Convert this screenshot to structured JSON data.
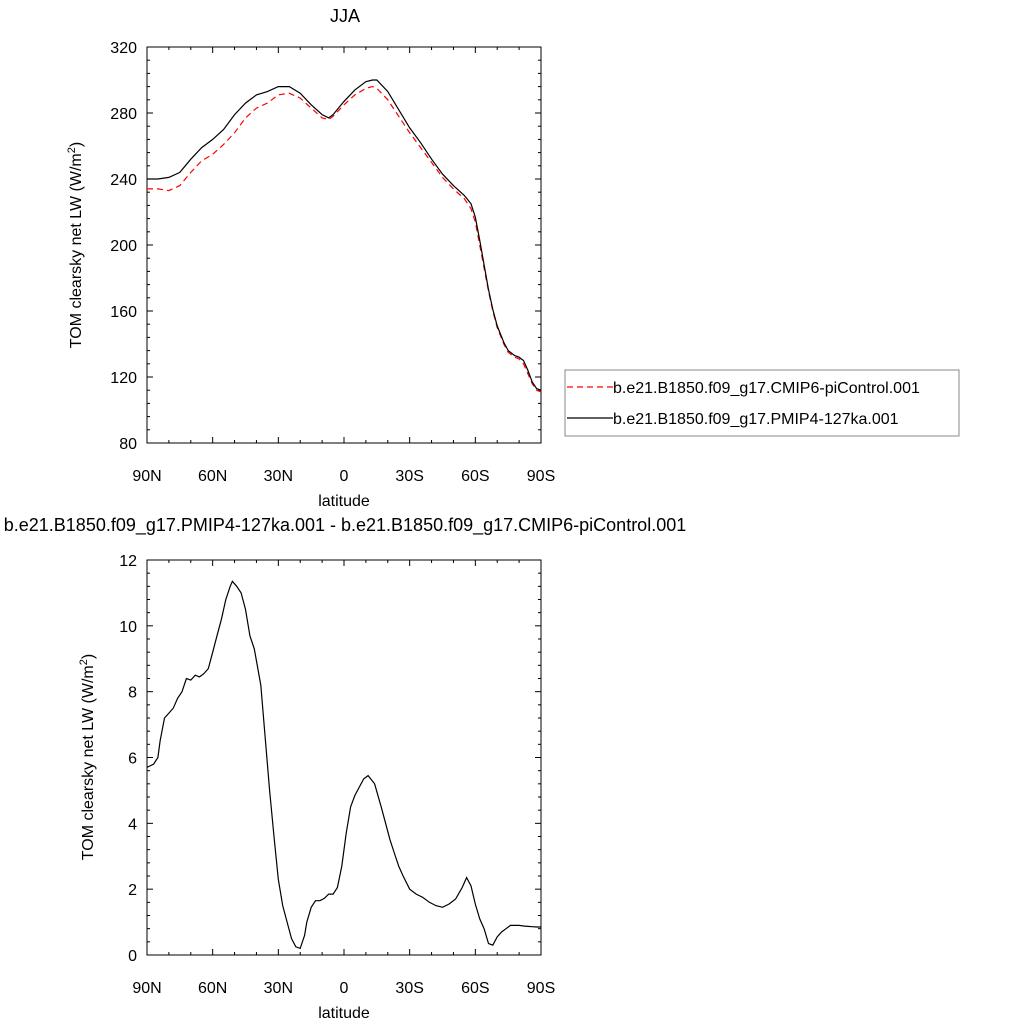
{
  "chart_data": [
    {
      "type": "line",
      "title": "JJA",
      "xlabel": "latitude",
      "ylabel_main": "TOM clearsky net LW (W/m",
      "ylabel_sup": "2",
      "ylabel_tail": ")",
      "xlim": [
        90,
        -90
      ],
      "ylim": [
        80,
        320
      ],
      "xticks": [
        {
          "value": 90,
          "label": "90N"
        },
        {
          "value": 60,
          "label": "60N"
        },
        {
          "value": 30,
          "label": "30N"
        },
        {
          "value": 0,
          "label": "0"
        },
        {
          "value": -30,
          "label": "30S"
        },
        {
          "value": -60,
          "label": "60S"
        },
        {
          "value": -90,
          "label": "90S"
        }
      ],
      "yticks": [
        80,
        120,
        160,
        200,
        240,
        280,
        320
      ],
      "legend": "right",
      "series": [
        {
          "name": "b.e21.B1850.f09_g17.CMIP6-piControl.001",
          "color": "#ff0000",
          "dash": "dashed",
          "x": [
            90,
            85,
            80,
            75,
            70,
            65,
            60,
            55,
            50,
            45,
            40,
            35,
            30,
            25,
            20,
            15,
            10,
            7,
            5,
            0,
            -5,
            -10,
            -13,
            -15,
            -20,
            -25,
            -30,
            -35,
            -40,
            -45,
            -50,
            -55,
            -58,
            -60,
            -62,
            -64,
            -66,
            -68,
            -70,
            -73,
            -75,
            -78,
            -80,
            -82,
            -84,
            -86,
            -88,
            -90
          ],
          "y": [
            234,
            234,
            233,
            236,
            244,
            251,
            255,
            261,
            268,
            277,
            283,
            286,
            291,
            292,
            289,
            283,
            277,
            276,
            278,
            285,
            291,
            295,
            296,
            295,
            288,
            278,
            268,
            259,
            250,
            241,
            234,
            228,
            222,
            214,
            200,
            186,
            172,
            160,
            150,
            140,
            135,
            132,
            131,
            128,
            122,
            116,
            112,
            111
          ]
        },
        {
          "name": "b.e21.B1850.f09_g17.PMIP4-127ka.001",
          "color": "#000000",
          "dash": "solid",
          "x": [
            90,
            85,
            80,
            75,
            70,
            65,
            60,
            55,
            50,
            45,
            40,
            35,
            30,
            25,
            20,
            15,
            10,
            7,
            5,
            0,
            -5,
            -10,
            -13,
            -15,
            -20,
            -25,
            -30,
            -35,
            -40,
            -45,
            -50,
            -55,
            -58,
            -60,
            -62,
            -64,
            -66,
            -68,
            -70,
            -73,
            -75,
            -78,
            -80,
            -82,
            -84,
            -86,
            -88,
            -90
          ],
          "y": [
            240,
            240,
            241,
            244,
            252,
            259,
            264,
            270,
            279,
            286,
            291,
            293,
            296,
            296,
            292,
            285,
            279,
            277,
            279,
            287,
            294,
            299,
            300,
            300,
            293,
            282,
            271,
            262,
            252,
            243,
            236,
            230,
            225,
            217,
            203,
            188,
            173,
            161,
            151,
            141,
            136,
            133,
            132,
            130,
            124,
            117,
            113,
            112
          ]
        }
      ]
    },
    {
      "type": "line",
      "title": "b.e21.B1850.f09_g17.PMIP4-127ka.001 - b.e21.B1850.f09_g17.CMIP6-piControl.001",
      "xlabel": "latitude",
      "ylabel_main": "TOM clearsky net LW (W/m",
      "ylabel_sup": "2",
      "ylabel_tail": ")",
      "xlim": [
        90,
        -90
      ],
      "ylim": [
        0,
        12
      ],
      "xticks": [
        {
          "value": 90,
          "label": "90N"
        },
        {
          "value": 60,
          "label": "60N"
        },
        {
          "value": 30,
          "label": "30N"
        },
        {
          "value": 0,
          "label": "0"
        },
        {
          "value": -30,
          "label": "30S"
        },
        {
          "value": -60,
          "label": "60S"
        },
        {
          "value": -90,
          "label": "90S"
        }
      ],
      "yticks": [
        0,
        2,
        4,
        6,
        8,
        10,
        12
      ],
      "series": [
        {
          "color": "#000000",
          "dash": "solid",
          "x": [
            90,
            87,
            85,
            84,
            82,
            80,
            78,
            76,
            74,
            72,
            70,
            68,
            66,
            64,
            62,
            60,
            58,
            56,
            54,
            52,
            51,
            49,
            47,
            45,
            43,
            41,
            38,
            36,
            34,
            32,
            30,
            28,
            26,
            24,
            22,
            20,
            18,
            17,
            15,
            13,
            11,
            9,
            7,
            5,
            3,
            1,
            -1,
            -3,
            -5,
            -7,
            -9,
            -11,
            -14,
            -17,
            -19,
            -21,
            -23,
            -25,
            -27,
            -30,
            -33,
            -36,
            -39,
            -42,
            -45,
            -48,
            -51,
            -54,
            -56,
            -58,
            -60,
            -62,
            -64,
            -66,
            -68,
            -70,
            -72,
            -74,
            -76,
            -78,
            -80,
            -82,
            -84,
            -86,
            -88,
            -90
          ],
          "y": [
            5.7,
            5.8,
            6.0,
            6.5,
            7.2,
            7.35,
            7.5,
            7.8,
            8.0,
            8.4,
            8.35,
            8.5,
            8.45,
            8.55,
            8.7,
            9.2,
            9.7,
            10.2,
            10.8,
            11.2,
            11.35,
            11.2,
            11.0,
            10.5,
            9.7,
            9.3,
            8.2,
            6.6,
            5.0,
            3.6,
            2.3,
            1.5,
            1.0,
            0.5,
            0.25,
            0.2,
            0.6,
            1.0,
            1.45,
            1.65,
            1.65,
            1.72,
            1.85,
            1.85,
            2.05,
            2.7,
            3.7,
            4.5,
            4.85,
            5.1,
            5.35,
            5.45,
            5.2,
            4.5,
            4.0,
            3.5,
            3.1,
            2.7,
            2.4,
            2.0,
            1.85,
            1.75,
            1.6,
            1.5,
            1.45,
            1.55,
            1.7,
            2.05,
            2.35,
            2.1,
            1.55,
            1.1,
            0.8,
            0.35,
            0.3,
            0.55,
            0.7,
            0.8,
            0.9,
            0.9,
            0.9,
            0.88,
            0.87,
            0.86,
            0.85,
            0.85
          ]
        }
      ]
    }
  ]
}
